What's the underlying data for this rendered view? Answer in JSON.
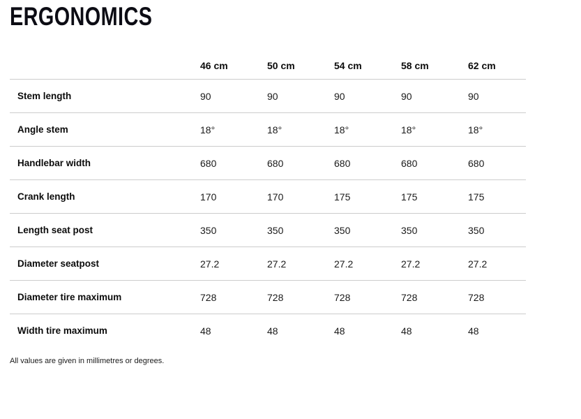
{
  "page": {
    "title": "ERGONOMICS",
    "note": "All values are given in millimetres or degrees."
  },
  "table": {
    "columns": [
      "46 cm",
      "50 cm",
      "54 cm",
      "58 cm",
      "62 cm"
    ],
    "rows": [
      {
        "label": "Stem length",
        "values": [
          "90",
          "90",
          "90",
          "90",
          "90"
        ]
      },
      {
        "label": "Angle stem",
        "values": [
          "18°",
          "18°",
          "18°",
          "18°",
          "18°"
        ]
      },
      {
        "label": "Handlebar width",
        "values": [
          "680",
          "680",
          "680",
          "680",
          "680"
        ]
      },
      {
        "label": "Crank length",
        "values": [
          "170",
          "170",
          "175",
          "175",
          "175"
        ]
      },
      {
        "label": "Length seat post",
        "values": [
          "350",
          "350",
          "350",
          "350",
          "350"
        ]
      },
      {
        "label": "Diameter seatpost",
        "values": [
          "27.2",
          "27.2",
          "27.2",
          "27.2",
          "27.2"
        ]
      },
      {
        "label": "Diameter tire maximum",
        "values": [
          "728",
          "728",
          "728",
          "728",
          "728"
        ]
      },
      {
        "label": "Width tire maximum",
        "values": [
          "48",
          "48",
          "48",
          "48",
          "48"
        ]
      }
    ]
  },
  "colors": {
    "text": "#0c0c0c",
    "value_text": "#1a1a1a",
    "divider": "#cccccc",
    "background": "#ffffff"
  }
}
